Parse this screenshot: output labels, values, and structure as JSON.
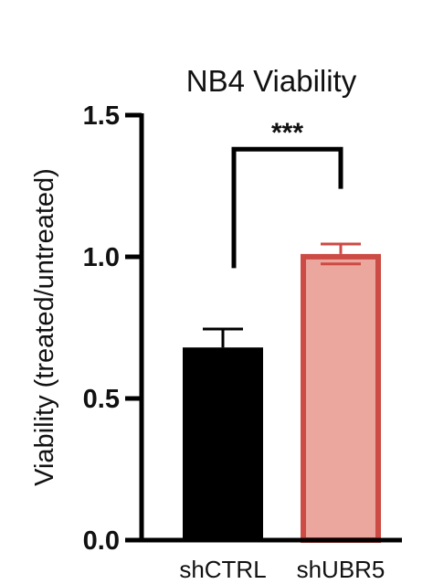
{
  "chart_data": {
    "type": "bar",
    "title": "NB4 Viability",
    "xlabel": "",
    "ylabel": "Viability (treated/untreated)",
    "categories": [
      "shCTRL",
      "shUBR5"
    ],
    "values": [
      0.68,
      1.01
    ],
    "errors": [
      0.065,
      0.035
    ],
    "ylim": [
      0,
      1.5
    ],
    "yticks": [
      0.0,
      0.5,
      1.0,
      1.5
    ],
    "ytick_labels": [
      "0.0",
      "0.5",
      "1.0",
      "1.5"
    ],
    "grid": false,
    "bar_fill_colors": [
      "#000000",
      "#eba69e"
    ],
    "bar_edge_colors": [
      "#000000",
      "#cd4b45"
    ],
    "significance": {
      "label": "***",
      "between": [
        "shCTRL",
        "shUBR5"
      ],
      "left_value": 0.96,
      "right_value": 1.24,
      "top_value": 1.38
    }
  }
}
